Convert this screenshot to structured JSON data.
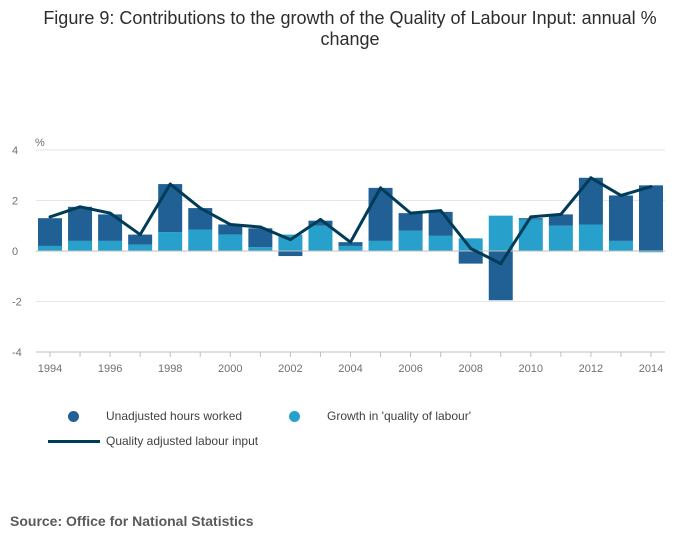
{
  "colors": {
    "hours": "#206095",
    "quality": "#27a0cc",
    "line": "#003c57",
    "grid": "#e6e6e6",
    "axis": "#bfbfbf",
    "tick_text": "#707070"
  },
  "chart_data": {
    "type": "bar",
    "title": "Figure 9: Contributions to the growth of the Quality of Labour Input: annual % change",
    "ylabel": "%",
    "ylim": [
      -4,
      4
    ],
    "yticks": [
      "4",
      "2",
      "0",
      "-2",
      "-4"
    ],
    "x": [
      1994,
      1995,
      1996,
      1997,
      1998,
      1999,
      2000,
      2001,
      2002,
      2003,
      2004,
      2005,
      2006,
      2007,
      2008,
      2009,
      2010,
      2011,
      2012,
      2013,
      2014
    ],
    "xtick_labels": [
      "1994",
      "1996",
      "1998",
      "2000",
      "2002",
      "2004",
      "2006",
      "2008",
      "2010",
      "2012",
      "2014"
    ],
    "stacked": true,
    "series": [
      {
        "name": "Unadjusted hours worked",
        "kind": "bar",
        "values": [
          1.1,
          1.35,
          1.05,
          0.4,
          1.9,
          0.85,
          0.4,
          0.75,
          -0.2,
          0.2,
          0.15,
          2.1,
          0.7,
          0.95,
          -0.5,
          -1.95,
          0.05,
          0.45,
          1.85,
          1.8,
          2.6
        ]
      },
      {
        "name": "Growth in 'quality of labour'",
        "kind": "bar",
        "values": [
          0.2,
          0.4,
          0.4,
          0.25,
          0.75,
          0.85,
          0.65,
          0.15,
          0.65,
          1.0,
          0.2,
          0.4,
          0.8,
          0.6,
          0.5,
          1.4,
          1.25,
          1.0,
          1.05,
          0.4,
          -0.05
        ]
      },
      {
        "name": "Quality adjusted labour input",
        "kind": "line",
        "values": [
          1.35,
          1.75,
          1.5,
          0.65,
          2.65,
          1.7,
          1.05,
          0.95,
          0.45,
          1.25,
          0.35,
          2.5,
          1.5,
          1.6,
          0.1,
          -0.5,
          1.35,
          1.45,
          2.9,
          2.2,
          2.55
        ]
      }
    ]
  },
  "legend": {
    "hours_label": "Unadjusted hours worked",
    "quality_label": "Growth in 'quality of labour'",
    "line_label": "Quality adjusted labour input"
  },
  "source": "Source: Office for National Statistics"
}
